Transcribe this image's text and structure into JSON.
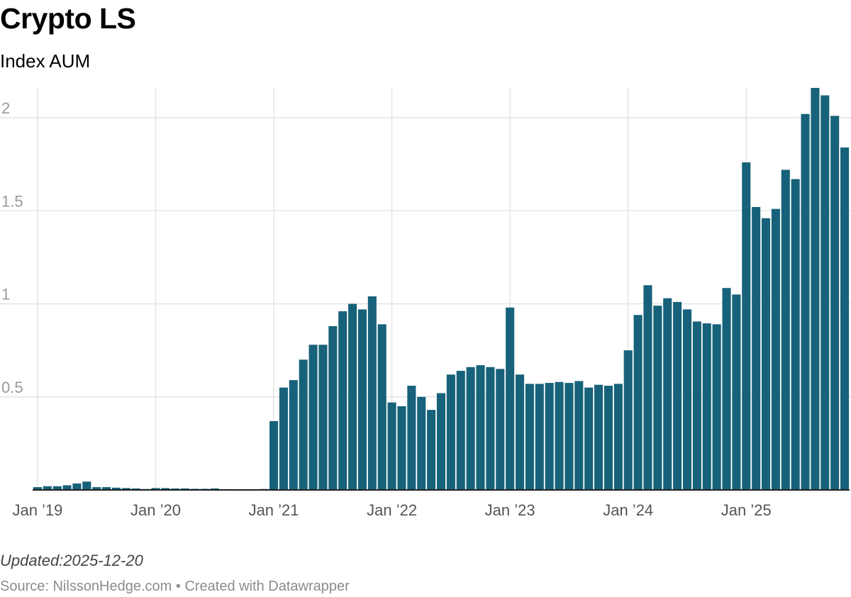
{
  "title": "Crypto LS",
  "subtitle": "Index AUM",
  "updated": "Updated:2025-12-20",
  "source": "Source: NilssonHedge.com • Created with Datawrapper",
  "chart_data": {
    "type": "bar",
    "title": "Crypto LS",
    "subtitle": "Index AUM",
    "xlabel": "",
    "ylabel": "",
    "ylim": [
      0,
      2.16
    ],
    "yticks": [
      {
        "v": 0.5,
        "label": "0.5"
      },
      {
        "v": 1,
        "label": "1"
      },
      {
        "v": 1.5,
        "label": "1.5"
      },
      {
        "v": 2,
        "label": "2"
      }
    ],
    "xticks": [
      {
        "index": 0,
        "label": "Jan ’19"
      },
      {
        "index": 12,
        "label": "Jan ’20"
      },
      {
        "index": 24,
        "label": "Jan ’21"
      },
      {
        "index": 36,
        "label": "Jan ’22"
      },
      {
        "index": 48,
        "label": "Jan ’23"
      },
      {
        "index": 60,
        "label": "Jan ’24"
      },
      {
        "index": 72,
        "label": "Jan ’25"
      }
    ],
    "start": "2019-01",
    "frequency": "monthly",
    "bar_color": "#17627a",
    "grid": true,
    "values": [
      0.015,
      0.02,
      0.02,
      0.025,
      0.035,
      0.045,
      0.015,
      0.015,
      0.012,
      0.01,
      0.008,
      0.005,
      0.01,
      0.01,
      0.008,
      0.008,
      0.006,
      0.006,
      0.008,
      0.004,
      0.003,
      0.002,
      0.002,
      0.005,
      0.37,
      0.55,
      0.59,
      0.7,
      0.78,
      0.78,
      0.88,
      0.96,
      1.0,
      0.97,
      1.04,
      0.89,
      0.47,
      0.45,
      0.56,
      0.5,
      0.43,
      0.52,
      0.62,
      0.64,
      0.66,
      0.67,
      0.66,
      0.65,
      0.98,
      0.62,
      0.57,
      0.57,
      0.575,
      0.58,
      0.575,
      0.585,
      0.55,
      0.565,
      0.56,
      0.57,
      0.75,
      0.94,
      1.1,
      0.99,
      1.03,
      1.01,
      0.97,
      0.905,
      0.895,
      0.89,
      1.085,
      1.05,
      1.76,
      1.52,
      1.46,
      1.51,
      1.72,
      1.67,
      2.02,
      2.16,
      2.12,
      2.01,
      1.84
    ]
  }
}
